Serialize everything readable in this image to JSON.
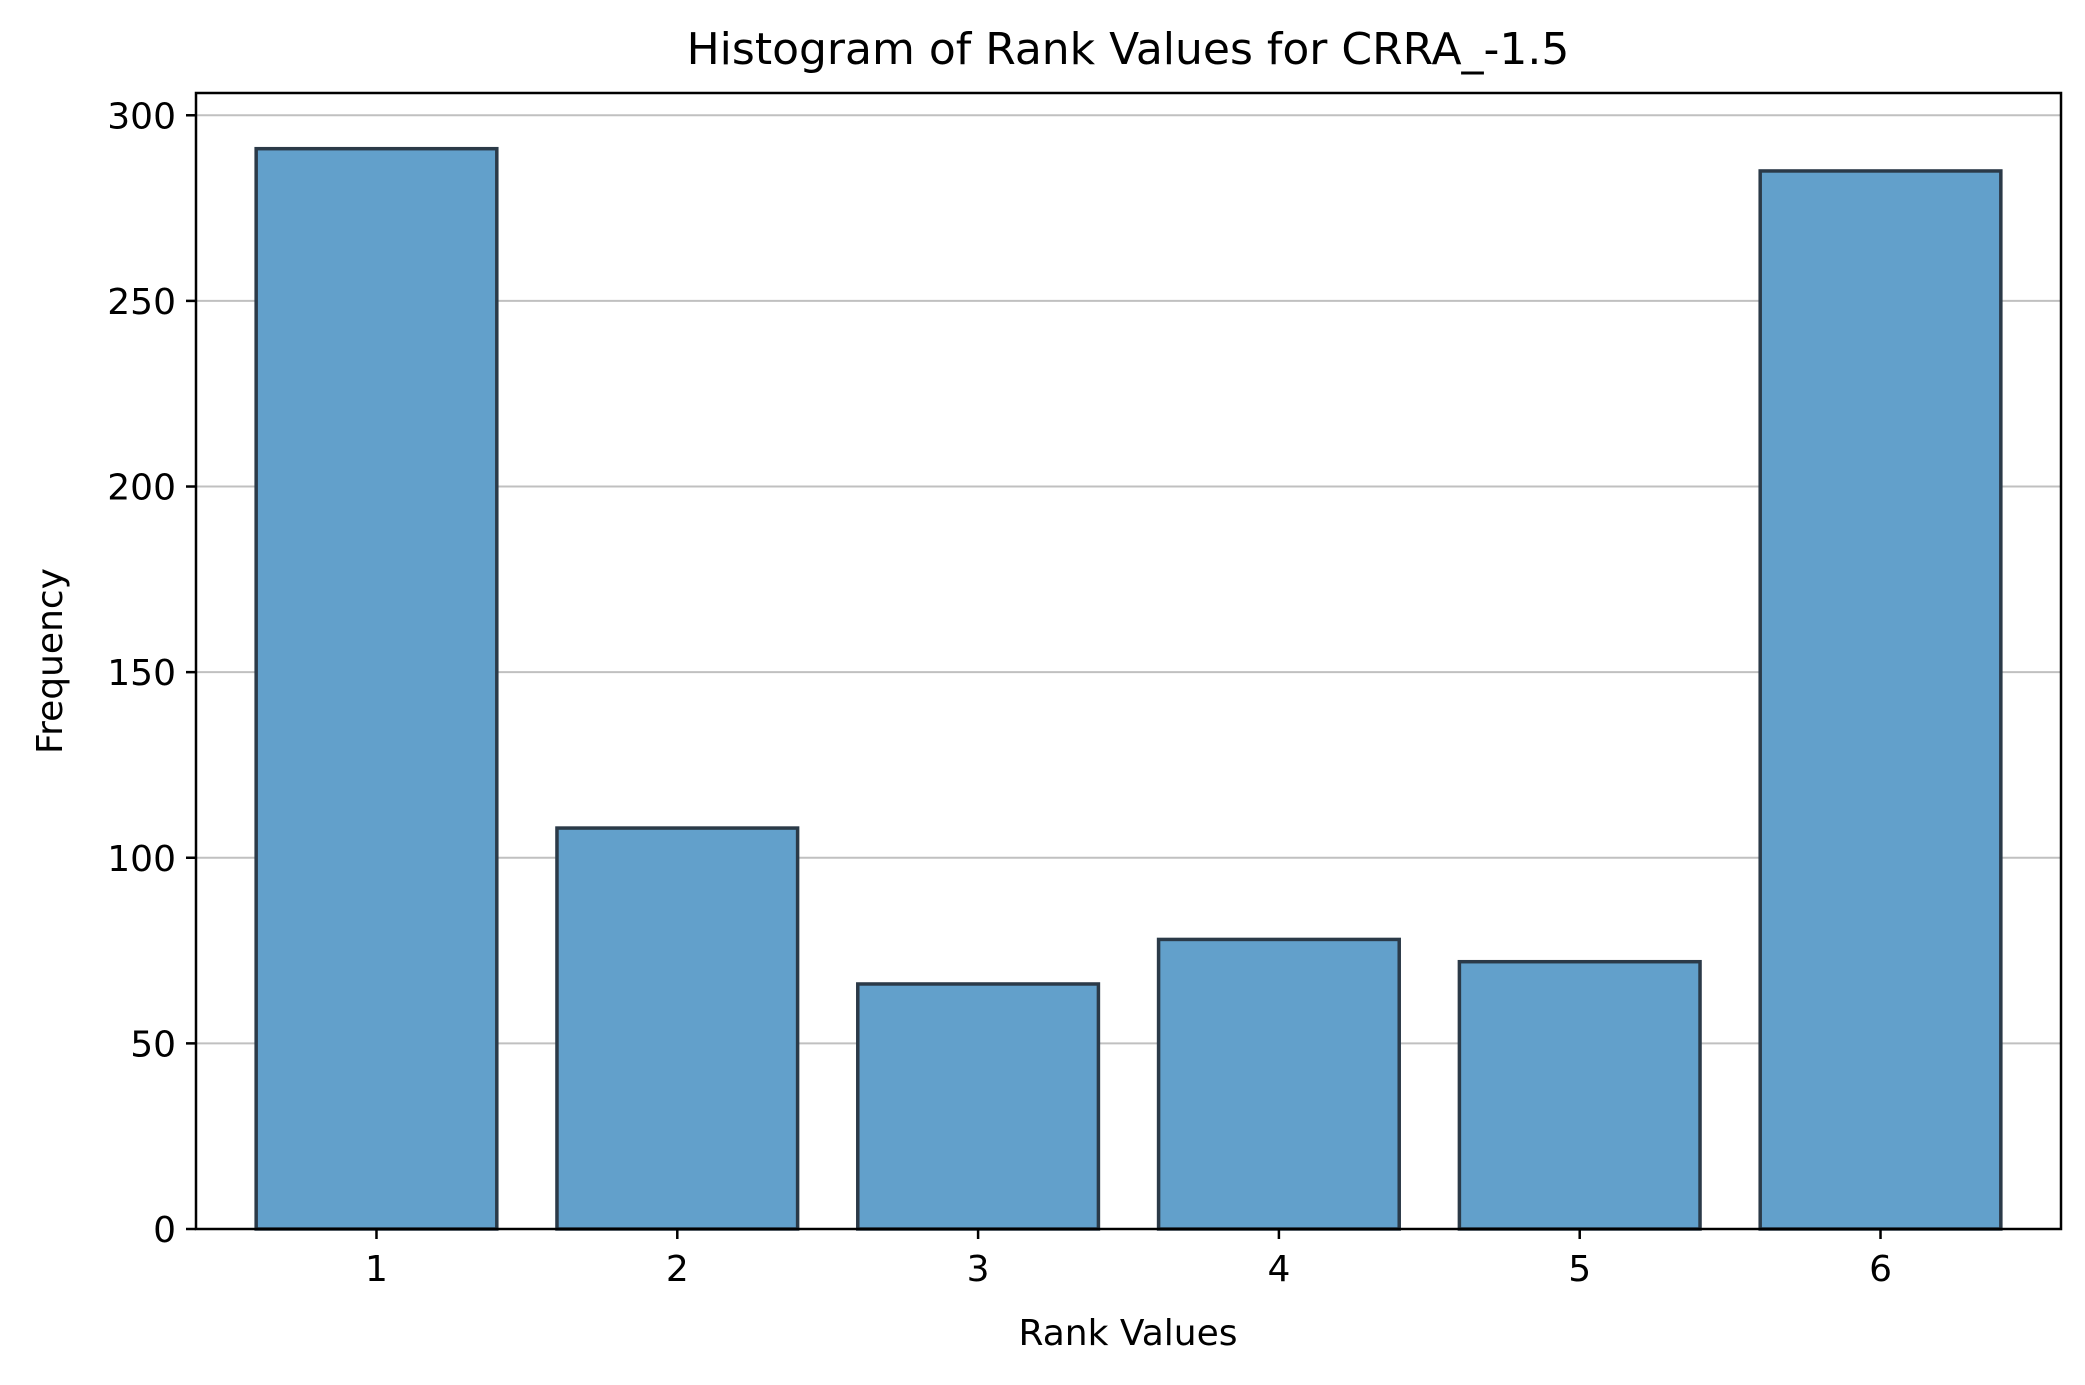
{
  "chart_data": {
    "type": "bar",
    "title": "Histogram of Rank Values for CRRA_-1.5",
    "xlabel": "Rank Values",
    "ylabel": "Frequency",
    "categories": [
      "1",
      "2",
      "3",
      "4",
      "5",
      "6"
    ],
    "values": [
      291,
      108,
      66,
      78,
      72,
      285
    ],
    "ylim": [
      0,
      306
    ],
    "yticks": [
      0,
      50,
      100,
      150,
      200,
      250,
      300
    ],
    "grid": "horizontal",
    "bar_color": "#62a0cb",
    "bar_edge_color": "#2b3a48"
  }
}
